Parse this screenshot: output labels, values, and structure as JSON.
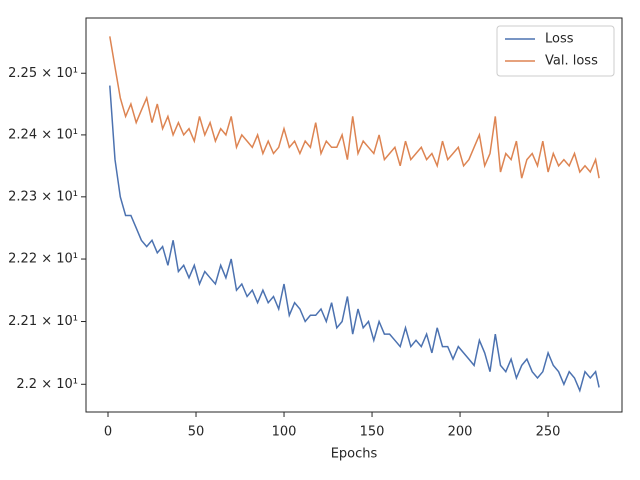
{
  "chart_data": {
    "type": "line",
    "xlabel": "Epochs",
    "x": [
      1,
      4,
      7,
      10,
      13,
      16,
      19,
      22,
      25,
      28,
      31,
      34,
      37,
      40,
      43,
      46,
      49,
      52,
      55,
      58,
      61,
      64,
      67,
      70,
      73,
      76,
      79,
      82,
      85,
      88,
      91,
      94,
      97,
      100,
      103,
      106,
      109,
      112,
      115,
      118,
      121,
      124,
      127,
      130,
      133,
      136,
      139,
      142,
      145,
      148,
      151,
      154,
      157,
      160,
      163,
      166,
      169,
      172,
      175,
      178,
      181,
      184,
      187,
      190,
      193,
      196,
      199,
      202,
      205,
      208,
      211,
      214,
      217,
      220,
      223,
      226,
      229,
      232,
      235,
      238,
      241,
      244,
      247,
      250,
      253,
      256,
      259,
      262,
      265,
      268,
      271,
      274,
      277,
      279
    ],
    "series": [
      {
        "name": "Loss",
        "color": "#4c72b0",
        "values": [
          22.48,
          22.36,
          22.3,
          22.27,
          22.27,
          22.25,
          22.23,
          22.22,
          22.23,
          22.21,
          22.22,
          22.19,
          22.23,
          22.18,
          22.19,
          22.17,
          22.19,
          22.16,
          22.18,
          22.17,
          22.16,
          22.19,
          22.17,
          22.2,
          22.15,
          22.16,
          22.14,
          22.15,
          22.13,
          22.15,
          22.13,
          22.14,
          22.12,
          22.16,
          22.11,
          22.13,
          22.12,
          22.1,
          22.11,
          22.11,
          22.12,
          22.1,
          22.13,
          22.09,
          22.1,
          22.14,
          22.08,
          22.12,
          22.09,
          22.1,
          22.07,
          22.1,
          22.08,
          22.08,
          22.07,
          22.06,
          22.09,
          22.06,
          22.07,
          22.06,
          22.08,
          22.05,
          22.09,
          22.06,
          22.06,
          22.04,
          22.06,
          22.05,
          22.04,
          22.03,
          22.07,
          22.05,
          22.02,
          22.08,
          22.03,
          22.02,
          22.04,
          22.01,
          22.03,
          22.04,
          22.02,
          22.01,
          22.02,
          22.05,
          22.03,
          22.02,
          22.0,
          22.02,
          22.01,
          21.99,
          22.02,
          22.01,
          22.02,
          21.995
        ]
      },
      {
        "name": "Val. loss",
        "color": "#dd8452",
        "values": [
          22.56,
          22.51,
          22.46,
          22.43,
          22.45,
          22.42,
          22.44,
          22.46,
          22.42,
          22.45,
          22.41,
          22.43,
          22.4,
          22.42,
          22.4,
          22.41,
          22.39,
          22.43,
          22.4,
          22.42,
          22.39,
          22.41,
          22.4,
          22.43,
          22.38,
          22.4,
          22.39,
          22.38,
          22.4,
          22.37,
          22.39,
          22.37,
          22.38,
          22.41,
          22.38,
          22.39,
          22.37,
          22.39,
          22.38,
          22.42,
          22.37,
          22.39,
          22.38,
          22.38,
          22.4,
          22.36,
          22.43,
          22.37,
          22.39,
          22.38,
          22.37,
          22.4,
          22.36,
          22.37,
          22.38,
          22.35,
          22.39,
          22.36,
          22.37,
          22.38,
          22.36,
          22.37,
          22.35,
          22.39,
          22.36,
          22.37,
          22.38,
          22.35,
          22.36,
          22.38,
          22.4,
          22.35,
          22.37,
          22.43,
          22.34,
          22.37,
          22.36,
          22.39,
          22.33,
          22.36,
          22.37,
          22.35,
          22.39,
          22.34,
          22.37,
          22.35,
          22.36,
          22.35,
          22.37,
          22.34,
          22.35,
          22.34,
          22.36,
          22.33
        ]
      }
    ],
    "xlim": [
      -12.5,
      292
    ],
    "xticks": [
      0,
      50,
      100,
      150,
      200,
      250
    ],
    "ylim": [
      21.956,
      22.59
    ],
    "log_y": true,
    "yticks": [
      {
        "value": 22.0,
        "label": "2.2 × 10¹"
      },
      {
        "value": 22.1,
        "label": "2.21 × 10¹"
      },
      {
        "value": 22.2,
        "label": "2.22 × 10¹"
      },
      {
        "value": 22.3,
        "label": "2.23 × 10¹"
      },
      {
        "value": 22.4,
        "label": "2.24 × 10¹"
      },
      {
        "value": 22.5,
        "label": "2.25 × 10¹"
      }
    ],
    "legend": "upper right"
  }
}
